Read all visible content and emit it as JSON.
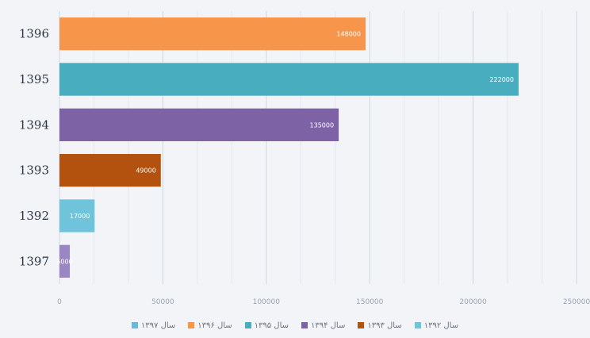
{
  "chart_data": {
    "type": "bar",
    "orientation": "horizontal",
    "categories": [
      "1396",
      "1395",
      "1394",
      "1393",
      "1392",
      "1397"
    ],
    "values": [
      148000,
      222000,
      135000,
      49000,
      17000,
      5000
    ],
    "value_labels": [
      "148000",
      "222000",
      "135000",
      "49000",
      "17000",
      "5000"
    ],
    "colors": [
      "#f7954a",
      "#48aebf",
      "#7d63a5",
      "#b3520e",
      "#6fc3da",
      "#9a86c2"
    ],
    "xlim": [
      0,
      250000
    ],
    "x_ticks": [
      "0",
      "50000",
      "100000",
      "150000",
      "200000",
      "250000"
    ],
    "grid": true,
    "legend_position": "bottom",
    "legend": [
      {
        "label": "سال ۱۳۹۷",
        "color": "#6fb7d6"
      },
      {
        "label": "سال ۱۳۹۶",
        "color": "#f7954a"
      },
      {
        "label": "سال ۱۳۹۵",
        "color": "#48aebf"
      },
      {
        "label": "سال ۱۳۹۴",
        "color": "#7d63a5"
      },
      {
        "label": "سال ۱۳۹۳",
        "color": "#b3520e"
      },
      {
        "label": "سال ۱۳۹۲",
        "color": "#6fc3da"
      }
    ]
  }
}
